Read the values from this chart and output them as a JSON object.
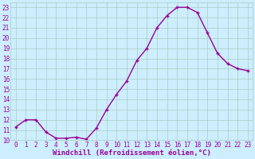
{
  "x": [
    0,
    1,
    2,
    3,
    4,
    5,
    6,
    7,
    8,
    9,
    10,
    11,
    12,
    13,
    14,
    15,
    16,
    17,
    18,
    19,
    20,
    21,
    22,
    23
  ],
  "y": [
    11.3,
    12.0,
    12.0,
    10.8,
    10.2,
    10.2,
    10.3,
    10.1,
    11.2,
    13.0,
    14.5,
    15.8,
    17.8,
    19.0,
    21.0,
    22.2,
    23.0,
    23.0,
    22.5,
    20.5,
    18.5,
    17.5,
    17.0,
    16.8
  ],
  "line_color": "#990099",
  "marker": "+",
  "marker_size": 3,
  "marker_linewidth": 1.0,
  "line_width": 1.0,
  "marker_color": "#990099",
  "bg_color": "#cceeff",
  "grid_color": "#aaccbb",
  "xlabel": "Windchill (Refroidissement éolien,°C)",
  "xlabel_color": "#990099",
  "xlabel_fontsize": 6.5,
  "tick_color": "#990099",
  "tick_fontsize": 5.5,
  "xlim": [
    -0.5,
    23.5
  ],
  "ylim": [
    10,
    23.5
  ],
  "yticks": [
    10,
    11,
    12,
    13,
    14,
    15,
    16,
    17,
    18,
    19,
    20,
    21,
    22,
    23
  ],
  "xticks": [
    0,
    1,
    2,
    3,
    4,
    5,
    6,
    7,
    8,
    9,
    10,
    11,
    12,
    13,
    14,
    15,
    16,
    17,
    18,
    19,
    20,
    21,
    22,
    23
  ]
}
